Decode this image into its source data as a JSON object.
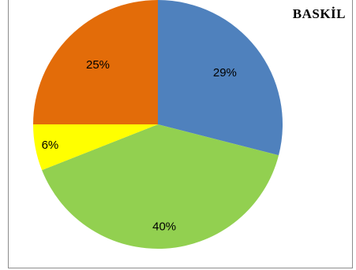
{
  "chart_data": {
    "type": "pie",
    "title": "BASKİL",
    "slices": [
      {
        "value": 29,
        "label": "29%",
        "color": "#4f81bd"
      },
      {
        "value": 40,
        "label": "40%",
        "color": "#92d050"
      },
      {
        "value": 6,
        "label": "6%",
        "color": "#ffff00"
      },
      {
        "value": 25,
        "label": "25%",
        "color": "#e36c09"
      }
    ],
    "start": "12 o'clock",
    "direction": "clockwise",
    "legend": "none"
  }
}
